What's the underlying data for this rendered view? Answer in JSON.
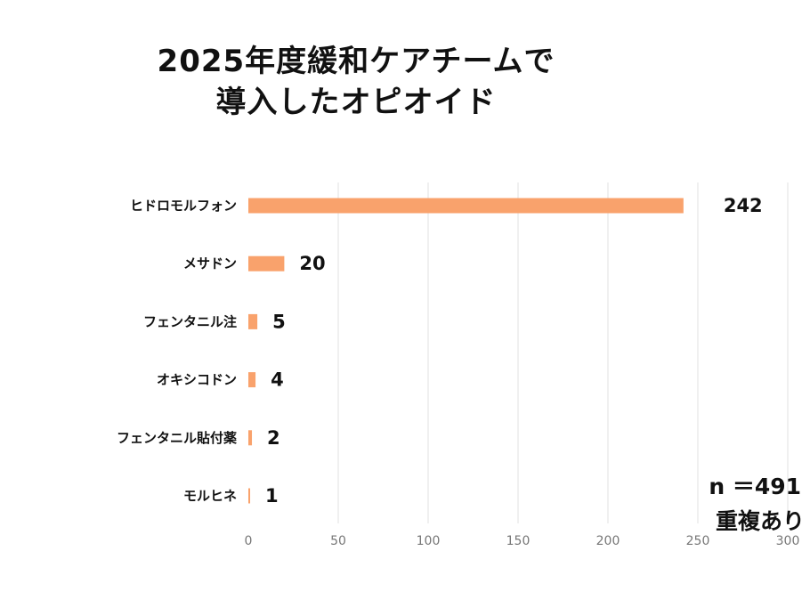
{
  "title_lines": [
    "2025年度緩和ケアチームで",
    "導入したオピオイド"
  ],
  "notes": {
    "n": "n ＝491",
    "duplicate": "重複あり"
  },
  "colors": {
    "bar": "#F9A26C",
    "grid": "#e2e2e2",
    "tick_text": "#777777",
    "label_text": "#111111"
  },
  "chart_data": {
    "type": "bar",
    "orientation": "horizontal",
    "title": "2025年度緩和ケアチームで導入したオピオイド",
    "categories": [
      "ヒドロモルフォン",
      "メサドン",
      "フェンタニル注",
      "オキシコドン",
      "フェンタニル貼付薬",
      "モルヒネ"
    ],
    "values": [
      242,
      20,
      5,
      4,
      2,
      1
    ],
    "data_labels": [
      "242",
      "20",
      "5",
      "4",
      "2",
      "1"
    ],
    "xlim": [
      0,
      300
    ],
    "x_ticks": [
      0,
      50,
      100,
      150,
      200,
      250,
      300
    ],
    "grid": true,
    "legend": false
  }
}
